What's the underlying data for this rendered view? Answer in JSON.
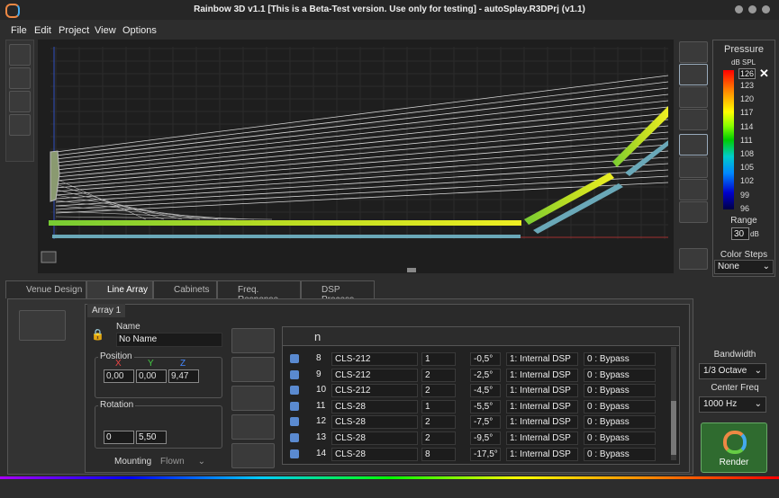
{
  "window": {
    "title": "Rainbow 3D v1.1  [This is a Beta-Test version. Use only for testing]  -  autoSplay.R3DPrj (v1.1)"
  },
  "menu": [
    "File",
    "Edit",
    "Project",
    "View",
    "Options"
  ],
  "pressure": {
    "title": "Pressure",
    "unit": "dB SPL",
    "max": "126",
    "scale": [
      "123",
      "120",
      "117",
      "114",
      "111",
      "108",
      "105",
      "102",
      "99",
      "96"
    ],
    "range_label": "Range",
    "range": "30",
    "range_unit": "dB",
    "steps_label": "Color Steps",
    "steps": "None"
  },
  "tabs": [
    "Venue Design",
    "Line Array",
    "Cabinets",
    "Freq. Response",
    "DSP Process"
  ],
  "array": {
    "tab": "Array 1",
    "name_label": "Name",
    "name": "No Name",
    "position_label": "Position",
    "axes": [
      "X",
      "Y",
      "Z"
    ],
    "position": [
      "0,00",
      "0,00",
      "9,47"
    ],
    "rotation_label": "Rotation",
    "rotation": [
      "0",
      "5,50"
    ],
    "mounting_label": "Mounting",
    "mounting": "Flown"
  },
  "table": {
    "header_n": "n",
    "rows": [
      [
        "8",
        "CLS-212",
        "1",
        "-0,5°",
        "1: Internal DSP",
        "0 : Bypass"
      ],
      [
        "9",
        "CLS-212",
        "2",
        "-2,5°",
        "1: Internal DSP",
        "0 : Bypass"
      ],
      [
        "10",
        "CLS-212",
        "2",
        "-4,5°",
        "1: Internal DSP",
        "0 : Bypass"
      ],
      [
        "11",
        "CLS-28",
        "1",
        "-5,5°",
        "1: Internal DSP",
        "0 : Bypass"
      ],
      [
        "12",
        "CLS-28",
        "2",
        "-7,5°",
        "1: Internal DSP",
        "0 : Bypass"
      ],
      [
        "13",
        "CLS-28",
        "2",
        "-9,5°",
        "1: Internal DSP",
        "0 : Bypass"
      ],
      [
        "14",
        "CLS-28",
        "8",
        "-17,5°",
        "1: Internal DSP",
        "0 : Bypass"
      ]
    ]
  },
  "analysis": {
    "bandwidth_label": "Bandwidth",
    "bandwidth": "1/3 Octave",
    "center_label": "Center Freq",
    "center": "1000 Hz",
    "render": "Render"
  }
}
